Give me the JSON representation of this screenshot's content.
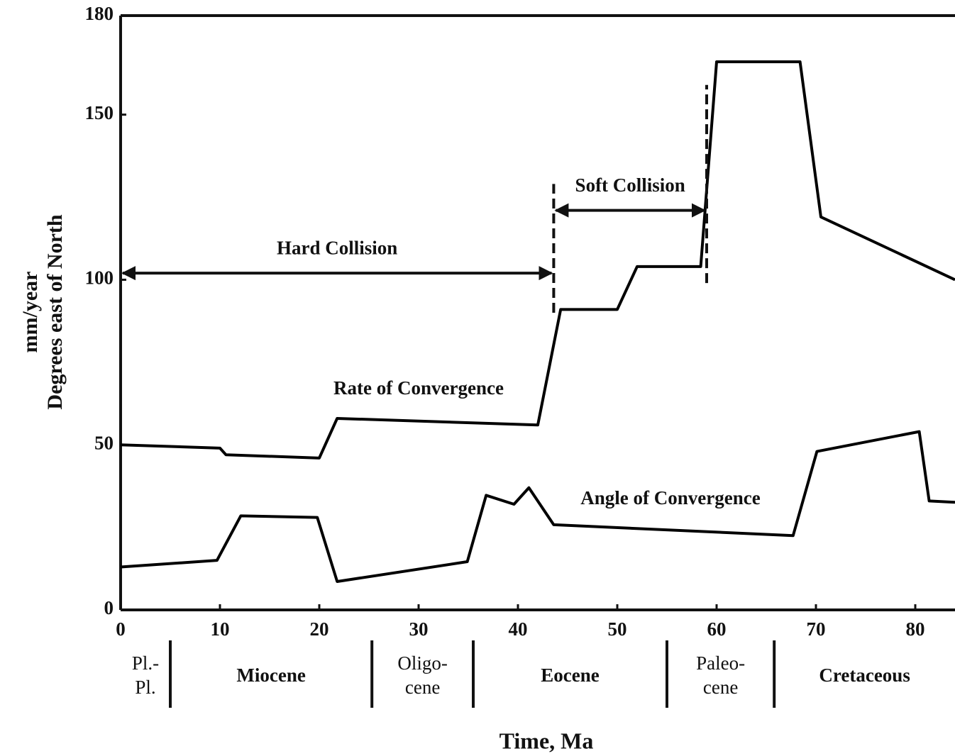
{
  "chart_data": {
    "type": "line",
    "xlabel": "Time, Ma",
    "ylabel": [
      "mm/year",
      "Degrees east of North"
    ],
    "xlim": [
      0,
      84
    ],
    "ylim": [
      0,
      180
    ],
    "xticks": [
      0,
      10,
      20,
      30,
      40,
      50,
      60,
      70,
      80
    ],
    "yticks": [
      0,
      50,
      100,
      150,
      180
    ],
    "series": [
      {
        "name": "Rate of Convergence",
        "color": "#000000",
        "x": [
          0,
          10,
          10.6,
          20,
          21.8,
          42,
          44.3,
          50,
          52,
          58.4,
          60,
          68.4,
          70.5,
          84
        ],
        "values": [
          50,
          49,
          47,
          46,
          58,
          56,
          91,
          91,
          104,
          104,
          166,
          166,
          119,
          100
        ]
      },
      {
        "name": "Angle of Convergence",
        "color": "#000000",
        "x": [
          0,
          9.7,
          12.1,
          19.8,
          21.8,
          34.9,
          36.8,
          39.6,
          41.1,
          43.6,
          67.7,
          70.1,
          80.4,
          81.4,
          84
        ],
        "values": [
          13,
          15,
          28.5,
          28,
          8.6,
          14.6,
          34.7,
          32,
          37,
          25.8,
          22.5,
          48,
          54,
          33,
          32.6
        ]
      }
    ],
    "periods": [
      {
        "label": "Hard Collision",
        "start": 0,
        "end": 43.6,
        "y": 102
      },
      {
        "label": "Soft Collision",
        "start": 43.6,
        "end": 59,
        "y": 121
      }
    ],
    "dashed_lines": [
      {
        "x": 43.6,
        "y": [
          90,
          129
        ]
      },
      {
        "x": 59,
        "y": [
          99,
          159
        ]
      }
    ],
    "epochs": [
      {
        "label": [
          "Pl.-",
          "Pl."
        ],
        "start": 0,
        "end": 5
      },
      {
        "label": [
          "Miocene"
        ],
        "start": 5,
        "end": 25.3
      },
      {
        "label": [
          "Oligo-",
          "cene"
        ],
        "start": 25.3,
        "end": 35.5
      },
      {
        "label": [
          "Eocene"
        ],
        "start": 35.5,
        "end": 55
      },
      {
        "label": [
          "Paleo-",
          "cene"
        ],
        "start": 55,
        "end": 65.8
      },
      {
        "label": [
          "Cretaceous"
        ],
        "start": 65.8,
        "end": 84
      }
    ]
  }
}
